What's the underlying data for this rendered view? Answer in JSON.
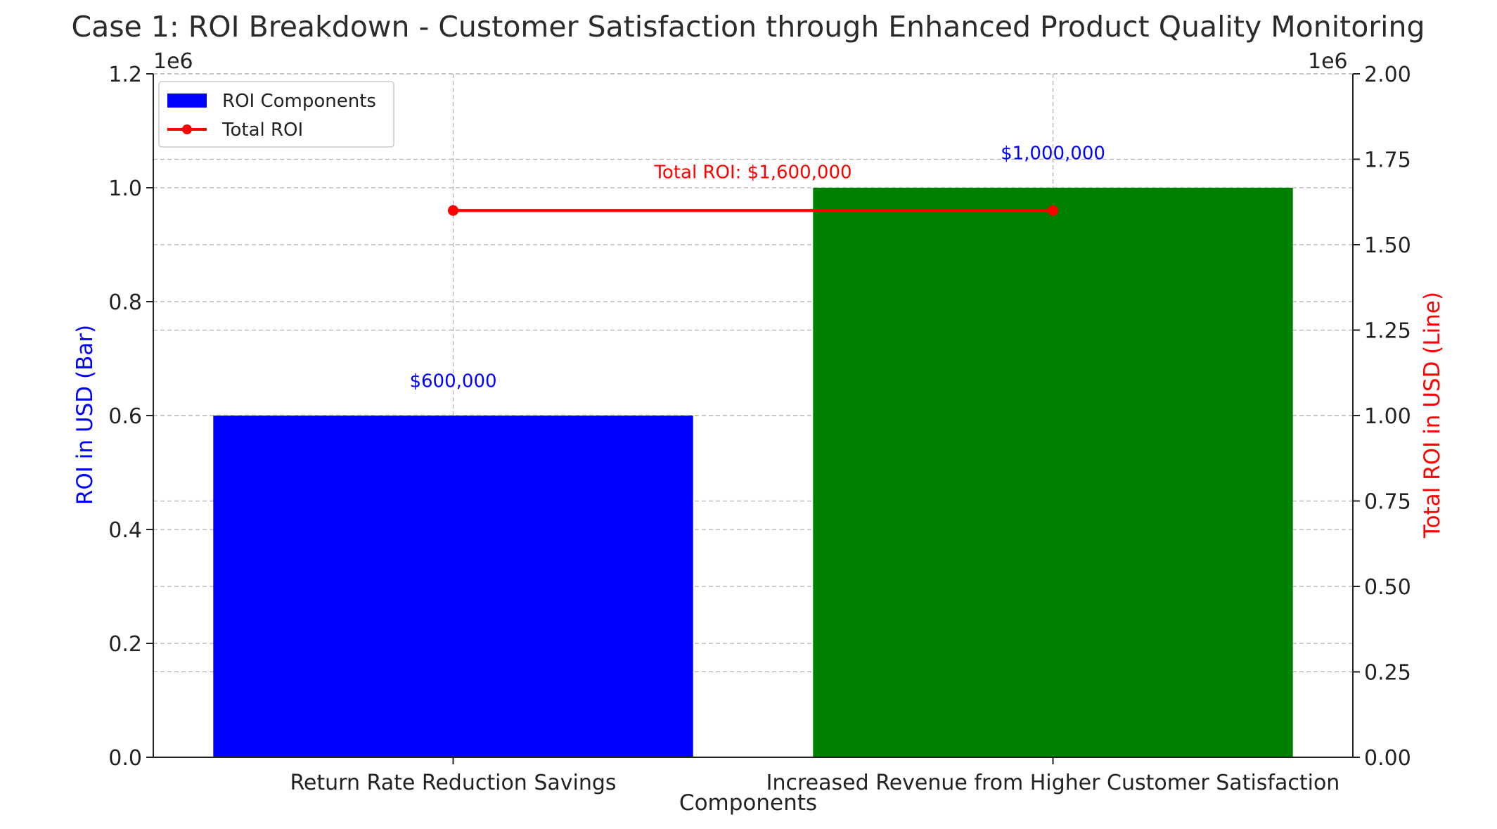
{
  "chart_data": {
    "type": "bar",
    "title": "Case 1: ROI Breakdown - Customer Satisfaction through Enhanced Product Quality Monitoring",
    "xlabel": "Components",
    "ylabel": "ROI in USD (Bar)",
    "y2label": "Total ROI in USD (Line)",
    "categories": [
      "Return Rate Reduction Savings",
      "Increased Revenue from Higher Customer Satisfaction"
    ],
    "series": [
      {
        "name": "ROI Components",
        "type": "bar",
        "axis": "left",
        "values": [
          600000,
          1000000
        ],
        "colors": [
          "#0000ff",
          "#008000"
        ],
        "labels": [
          "$600,000",
          "$1,000,000"
        ]
      },
      {
        "name": "Total ROI",
        "type": "line",
        "axis": "right",
        "values": [
          1600000,
          1600000
        ],
        "color": "#ff0000",
        "annotation": "Total ROI: $1,600,000"
      }
    ],
    "ylim": [
      0,
      1200000
    ],
    "y2lim": [
      0,
      2000000
    ],
    "yticks": [
      "0.0",
      "0.2",
      "0.4",
      "0.6",
      "0.8",
      "1.0",
      "1.2"
    ],
    "y2ticks": [
      "0.00",
      "0.25",
      "0.50",
      "0.75",
      "1.00",
      "1.25",
      "1.50",
      "1.75",
      "2.00"
    ],
    "y_scale_label": "1e6",
    "y2_scale_label": "1e6",
    "ylabel_color": "#0000ff",
    "y2label_color": "#ff0000",
    "grid": true,
    "legend_position": "top-left"
  }
}
